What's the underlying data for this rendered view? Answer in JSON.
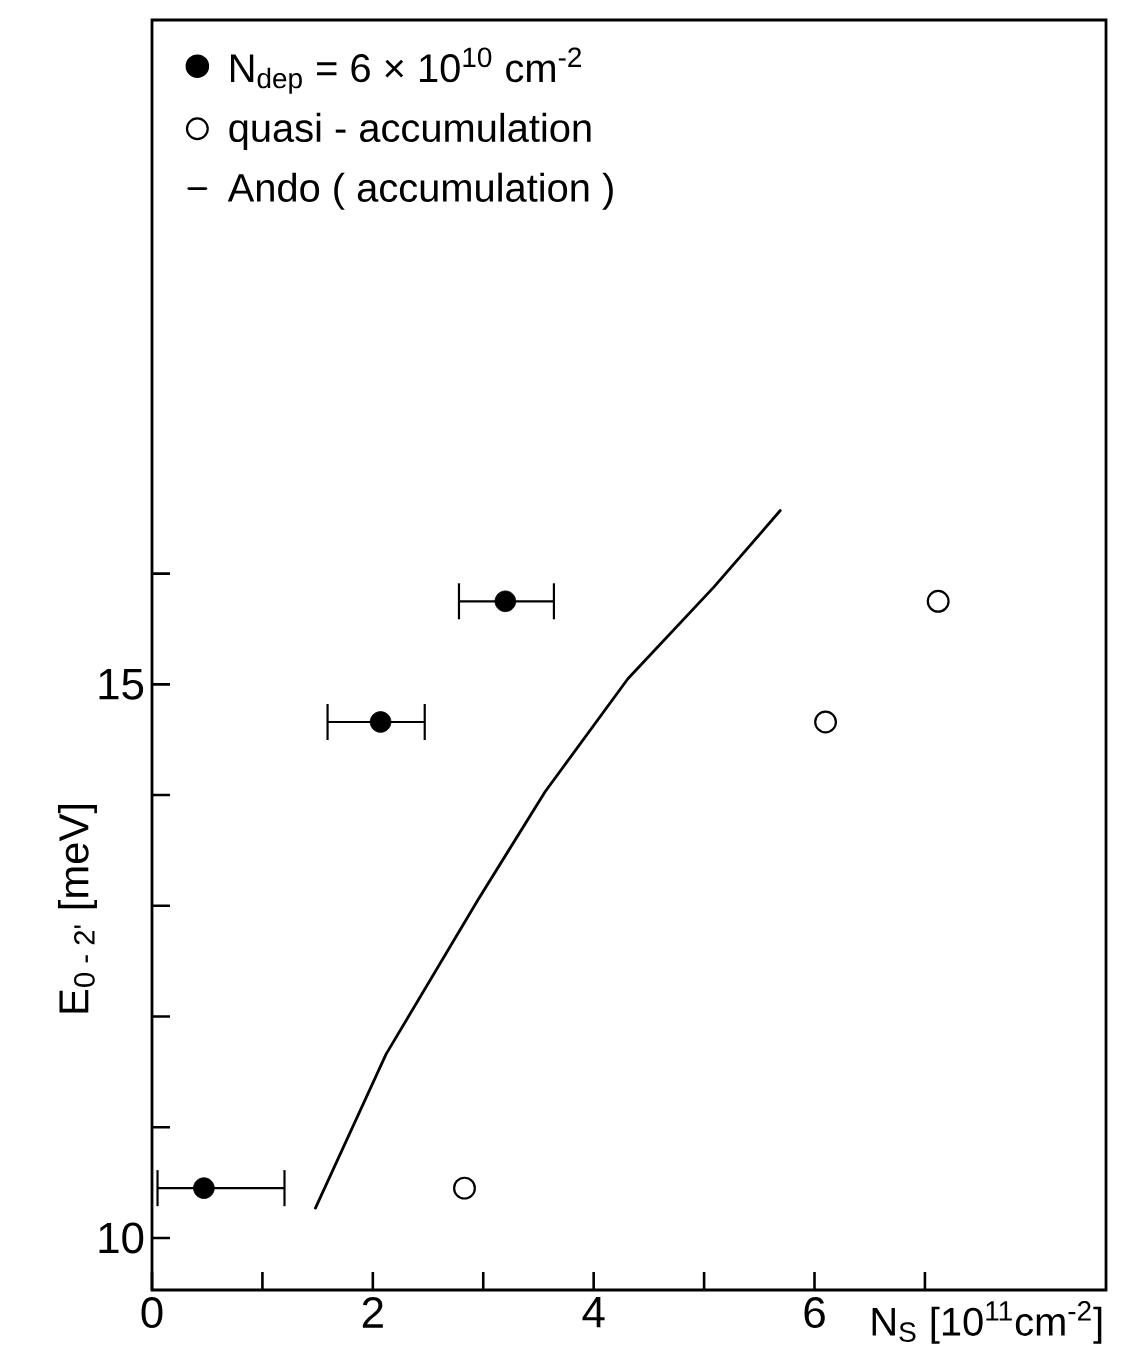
{
  "chart_data": {
    "type": "scatter",
    "xlabel": "N$_{S}$ [10$^{11}$cm$^{-2}$]",
    "ylabel": "E$_{0 - 2'}$ [meV]",
    "xlim": [
      0,
      8.64
    ],
    "ylim": [
      9.53,
      21
    ],
    "xticks": [
      0,
      {
        "value": 1,
        "label": null
      },
      2,
      {
        "value": 3,
        "label": null
      },
      4,
      {
        "value": 5,
        "label": null
      },
      6,
      {
        "value": 7,
        "label": null
      }
    ],
    "yticks": [
      10,
      {
        "value": 11,
        "label": null
      },
      {
        "value": 12,
        "label": null
      },
      {
        "value": 13,
        "label": null
      },
      {
        "value": 14,
        "label": null
      },
      15,
      {
        "value": 16,
        "label": null
      }
    ],
    "legend": "top left",
    "series": [
      {
        "name": "N$_{dep}$ =  6 × 10$^{10}$ cm$^{-2}$",
        "marker": "circle",
        "color": "#000000",
        "x": [
          0.47,
          2.07,
          3.2
        ],
        "values": [
          10.45,
          14.66,
          15.75
        ],
        "xerrors": [
          [
            0.05,
            1.2
          ],
          [
            1.59,
            2.47
          ],
          [
            2.78,
            3.64
          ]
        ]
      },
      {
        "name": "quasi - accumulation",
        "type": "scatter",
        "marker": "circle_open",
        "color": "#000000",
        "x": [
          2.83,
          6.1,
          7.12
        ],
        "values": [
          10.45,
          14.66,
          15.75
        ]
      },
      {
        "name": "Ando ( accumulation )",
        "type": "line",
        "marker": "none",
        "color": "#000000",
        "x": [
          1.48,
          2.12,
          2.95,
          3.56,
          4.31,
          5.09,
          5.69
        ],
        "values": [
          10.27,
          11.66,
          13.05,
          14.03,
          15.05,
          15.88,
          16.57
        ]
      }
    ]
  }
}
